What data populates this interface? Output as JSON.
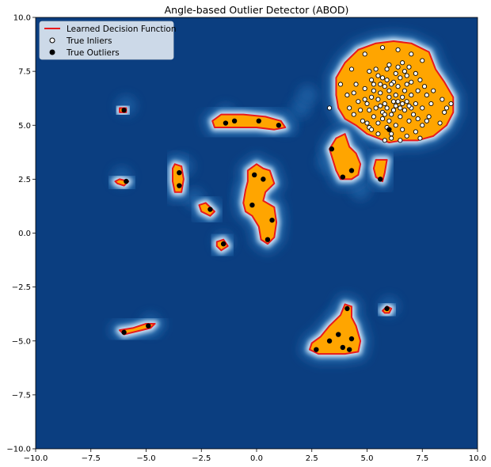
{
  "chart_data": {
    "type": "scatter",
    "title": "Angle-based Outlier Detector (ABOD)",
    "xlabel": "",
    "ylabel": "",
    "xlim": [
      -10,
      10
    ],
    "ylim": [
      -10,
      10
    ],
    "xticks": [
      -10.0,
      -7.5,
      -5.0,
      -2.5,
      0.0,
      2.5,
      5.0,
      7.5,
      10.0
    ],
    "yticks": [
      -10.0,
      -7.5,
      -5.0,
      -2.5,
      0.0,
      2.5,
      5.0,
      7.5,
      10.0
    ],
    "xtick_labels": [
      "−10.0",
      "−7.5",
      "−5.0",
      "−2.5",
      "0.0",
      "2.5",
      "5.0",
      "7.5",
      "10.0"
    ],
    "ytick_labels": [
      "−10.0",
      "−7.5",
      "−5.0",
      "−2.5",
      "0.0",
      "2.5",
      "5.0",
      "7.5",
      "10.0"
    ],
    "grid": false,
    "legend_position": "top-left",
    "legend": [
      {
        "label": "Learned Decision Function",
        "kind": "line",
        "color": "#e8191c"
      },
      {
        "label": "True Inliers",
        "kind": "marker",
        "color": "#ffffff"
      },
      {
        "label": "True Outliers",
        "kind": "marker",
        "color": "#000000"
      }
    ],
    "colors": {
      "background": "#0b3e80",
      "inlier_region": "#ffa500",
      "decision_line": "#e8191c",
      "halo_dark": "#1f5ea3",
      "halo_light": "#e7f0f9"
    },
    "inlier_region_polygons": [
      [
        [
          3.6,
          7.2
        ],
        [
          4.0,
          7.9
        ],
        [
          4.6,
          8.5
        ],
        [
          5.4,
          8.8
        ],
        [
          6.2,
          8.9
        ],
        [
          7.0,
          8.8
        ],
        [
          7.8,
          8.4
        ],
        [
          8.1,
          7.6
        ],
        [
          8.5,
          7.0
        ],
        [
          8.9,
          6.3
        ],
        [
          8.9,
          5.6
        ],
        [
          8.6,
          5.0
        ],
        [
          8.0,
          4.5
        ],
        [
          7.3,
          4.3
        ],
        [
          6.6,
          4.3
        ],
        [
          6.0,
          4.2
        ],
        [
          5.5,
          4.4
        ],
        [
          5.0,
          4.6
        ],
        [
          4.5,
          5.0
        ],
        [
          4.0,
          5.3
        ],
        [
          3.7,
          5.8
        ],
        [
          3.6,
          6.4
        ]
      ],
      [
        [
          3.3,
          3.9
        ],
        [
          3.6,
          4.4
        ],
        [
          4.0,
          4.6
        ],
        [
          4.2,
          4.0
        ],
        [
          4.5,
          3.7
        ],
        [
          4.7,
          3.2
        ],
        [
          4.6,
          2.7
        ],
        [
          4.3,
          2.5
        ],
        [
          3.8,
          2.5
        ],
        [
          3.6,
          2.9
        ]
      ],
      [
        [
          5.4,
          3.4
        ],
        [
          5.9,
          3.4
        ],
        [
          5.8,
          2.8
        ],
        [
          5.7,
          2.4
        ],
        [
          5.4,
          2.6
        ],
        [
          5.3,
          3.0
        ]
      ],
      [
        [
          -2.0,
          5.2
        ],
        [
          -1.6,
          5.5
        ],
        [
          -0.6,
          5.5
        ],
        [
          0.4,
          5.4
        ],
        [
          1.1,
          5.2
        ],
        [
          1.3,
          4.9
        ],
        [
          0.8,
          4.8
        ],
        [
          0.0,
          4.9
        ],
        [
          -1.0,
          4.9
        ],
        [
          -1.9,
          4.9
        ]
      ],
      [
        [
          -3.8,
          3.0
        ],
        [
          -3.7,
          3.2
        ],
        [
          -3.4,
          3.1
        ],
        [
          -3.3,
          2.5
        ],
        [
          -3.4,
          1.9
        ],
        [
          -3.7,
          1.9
        ],
        [
          -3.8,
          2.4
        ]
      ],
      [
        [
          -6.4,
          2.4
        ],
        [
          -6.2,
          2.5
        ],
        [
          -5.8,
          2.4
        ],
        [
          -6.0,
          2.2
        ],
        [
          -6.3,
          2.3
        ]
      ],
      [
        [
          -6.2,
          5.8
        ],
        [
          -5.9,
          5.8
        ],
        [
          -5.9,
          5.6
        ],
        [
          -6.2,
          5.6
        ]
      ],
      [
        [
          -2.6,
          1.3
        ],
        [
          -2.3,
          1.4
        ],
        [
          -1.9,
          1.0
        ],
        [
          -2.1,
          0.8
        ],
        [
          -2.5,
          1.0
        ]
      ],
      [
        [
          -1.8,
          -0.4
        ],
        [
          -1.5,
          -0.3
        ],
        [
          -1.3,
          -0.6
        ],
        [
          -1.6,
          -0.8
        ],
        [
          -1.8,
          -0.6
        ]
      ],
      [
        [
          -0.4,
          2.9
        ],
        [
          0.0,
          3.2
        ],
        [
          0.3,
          3.0
        ],
        [
          0.6,
          2.9
        ],
        [
          0.8,
          2.3
        ],
        [
          0.4,
          1.9
        ],
        [
          0.3,
          1.5
        ],
        [
          0.8,
          1.2
        ],
        [
          0.9,
          0.5
        ],
        [
          0.8,
          -0.2
        ],
        [
          0.5,
          -0.5
        ],
        [
          0.2,
          -0.3
        ],
        [
          0.1,
          0.3
        ],
        [
          -0.2,
          0.8
        ],
        [
          -0.5,
          1.0
        ],
        [
          -0.6,
          1.4
        ],
        [
          -0.5,
          2.0
        ],
        [
          -0.4,
          2.4
        ]
      ],
      [
        [
          -6.2,
          -4.5
        ],
        [
          -6.0,
          -4.7
        ],
        [
          -5.2,
          -4.5
        ],
        [
          -4.8,
          -4.4
        ],
        [
          -4.6,
          -4.2
        ],
        [
          -5.0,
          -4.2
        ],
        [
          -5.6,
          -4.4
        ]
      ],
      [
        [
          2.4,
          -5.4
        ],
        [
          2.5,
          -5.1
        ],
        [
          2.9,
          -4.8
        ],
        [
          3.3,
          -4.3
        ],
        [
          3.8,
          -3.8
        ],
        [
          4.0,
          -3.3
        ],
        [
          4.3,
          -3.4
        ],
        [
          4.3,
          -3.9
        ],
        [
          4.5,
          -4.3
        ],
        [
          4.7,
          -5.0
        ],
        [
          4.6,
          -5.5
        ],
        [
          4.0,
          -5.6
        ],
        [
          3.5,
          -5.6
        ],
        [
          2.8,
          -5.6
        ]
      ],
      [
        [
          5.7,
          -3.6
        ],
        [
          5.9,
          -3.4
        ],
        [
          6.1,
          -3.5
        ],
        [
          6.0,
          -3.7
        ],
        [
          5.8,
          -3.7
        ]
      ]
    ],
    "halo_points": [
      [
        -4.8,
        -4.2
      ],
      [
        -3.3,
        3.1
      ],
      [
        -1.4,
        5.5
      ],
      [
        1.3,
        5.1
      ],
      [
        -0.5,
        1.9
      ],
      [
        0.7,
        0.9
      ],
      [
        2.0,
        5.8
      ],
      [
        2.3,
        6.4
      ],
      [
        3.2,
        3.3
      ],
      [
        4.7,
        2.0
      ],
      [
        -2.8,
        1.6
      ],
      [
        -6.1,
        2.6
      ],
      [
        -5.9,
        5.9
      ],
      [
        -1.5,
        -0.4
      ],
      [
        3.7,
        -3.9
      ],
      [
        6.0,
        -3.4
      ]
    ],
    "inliers": [
      [
        4.9,
        8.3
      ],
      [
        5.1,
        7.5
      ],
      [
        5.7,
        8.6
      ],
      [
        6.4,
        8.5
      ],
      [
        7.0,
        8.3
      ],
      [
        7.5,
        8.0
      ],
      [
        4.3,
        7.6
      ],
      [
        4.5,
        6.9
      ],
      [
        4.9,
        6.7
      ],
      [
        5.2,
        7.1
      ],
      [
        5.4,
        7.6
      ],
      [
        5.7,
        7.2
      ],
      [
        6.0,
        7.8
      ],
      [
        6.3,
        7.4
      ],
      [
        6.6,
        7.9
      ],
      [
        6.9,
        7.7
      ],
      [
        7.2,
        7.4
      ],
      [
        7.4,
        7.1
      ],
      [
        7.6,
        6.8
      ],
      [
        7.7,
        6.4
      ],
      [
        7.9,
        6.0
      ],
      [
        7.8,
        5.4
      ],
      [
        7.5,
        5.0
      ],
      [
        7.2,
        4.7
      ],
      [
        6.8,
        4.5
      ],
      [
        6.5,
        4.3
      ],
      [
        6.1,
        4.4
      ],
      [
        5.8,
        4.3
      ],
      [
        5.5,
        4.6
      ],
      [
        5.1,
        4.9
      ],
      [
        4.8,
        5.2
      ],
      [
        4.4,
        5.5
      ],
      [
        4.2,
        5.8
      ],
      [
        4.1,
        6.4
      ],
      [
        3.8,
        6.9
      ],
      [
        3.3,
        5.8
      ],
      [
        8.4,
        6.2
      ],
      [
        8.5,
        5.6
      ],
      [
        8.3,
        5.1
      ],
      [
        8.8,
        6.0
      ],
      [
        8.6,
        5.8
      ],
      [
        7.4,
        4.4
      ],
      [
        5.0,
        6.0
      ],
      [
        5.2,
        6.3
      ],
      [
        5.4,
        5.8
      ],
      [
        5.6,
        6.5
      ],
      [
        5.8,
        6.0
      ],
      [
        6.0,
        6.6
      ],
      [
        6.2,
        6.1
      ],
      [
        6.4,
        6.8
      ],
      [
        6.6,
        6.3
      ],
      [
        6.8,
        6.9
      ],
      [
        7.0,
        6.4
      ],
      [
        7.2,
        6.0
      ],
      [
        7.1,
        5.5
      ],
      [
        6.9,
        5.2
      ],
      [
        6.7,
        5.7
      ],
      [
        6.5,
        5.4
      ],
      [
        6.3,
        5.9
      ],
      [
        6.1,
        5.5
      ],
      [
        5.9,
        5.8
      ],
      [
        5.7,
        5.3
      ],
      [
        5.5,
        5.1
      ],
      [
        5.3,
        5.4
      ],
      [
        5.1,
        5.7
      ],
      [
        4.9,
        6.2
      ],
      [
        5.6,
        6.9
      ],
      [
        5.9,
        7.1
      ],
      [
        6.2,
        7.0
      ],
      [
        6.5,
        7.2
      ],
      [
        6.7,
        7.5
      ],
      [
        6.0,
        6.3
      ],
      [
        6.2,
        5.7
      ],
      [
        5.8,
        6.8
      ],
      [
        6.4,
        6.1
      ],
      [
        6.6,
        6.0
      ],
      [
        5.5,
        6.2
      ],
      [
        5.3,
        6.6
      ],
      [
        5.7,
        5.6
      ],
      [
        6.0,
        5.2
      ],
      [
        6.3,
        5.0
      ],
      [
        6.8,
        6.1
      ],
      [
        7.0,
        5.8
      ],
      [
        4.6,
        6.1
      ],
      [
        4.7,
        5.7
      ],
      [
        5.0,
        5.1
      ],
      [
        5.2,
        4.8
      ],
      [
        5.9,
        4.9
      ],
      [
        6.1,
        4.6
      ],
      [
        6.6,
        4.8
      ],
      [
        7.3,
        5.3
      ],
      [
        7.5,
        5.8
      ],
      [
        7.3,
        6.6
      ],
      [
        7.0,
        7.0
      ],
      [
        6.8,
        7.3
      ],
      [
        6.4,
        7.7
      ],
      [
        5.9,
        7.6
      ],
      [
        5.5,
        7.3
      ],
      [
        5.3,
        6.9
      ],
      [
        6.7,
        6.6
      ],
      [
        6.9,
        5.9
      ],
      [
        7.7,
        5.2
      ],
      [
        8.0,
        6.6
      ],
      [
        4.4,
        6.5
      ],
      [
        6.1,
        6.9
      ],
      [
        5.6,
        5.9
      ],
      [
        6.3,
        6.4
      ],
      [
        6.5,
        5.8
      ],
      [
        5.8,
        5.5
      ]
    ],
    "outliers": [
      [
        -6.0,
        5.7
      ],
      [
        -5.9,
        2.4
      ],
      [
        -3.5,
        2.8
      ],
      [
        -3.5,
        2.2
      ],
      [
        -2.1,
        1.1
      ],
      [
        -1.5,
        -0.5
      ],
      [
        -1.4,
        5.1
      ],
      [
        -1.0,
        5.2
      ],
      [
        0.1,
        5.2
      ],
      [
        1.0,
        5.0
      ],
      [
        -0.1,
        2.7
      ],
      [
        0.3,
        2.5
      ],
      [
        -0.2,
        1.3
      ],
      [
        0.7,
        0.6
      ],
      [
        0.5,
        -0.3
      ],
      [
        3.4,
        3.9
      ],
      [
        3.9,
        2.6
      ],
      [
        4.3,
        2.9
      ],
      [
        5.6,
        2.5
      ],
      [
        6.0,
        4.8
      ],
      [
        -6.0,
        -4.6
      ],
      [
        -4.9,
        -4.3
      ],
      [
        4.1,
        -3.5
      ],
      [
        2.7,
        -5.4
      ],
      [
        3.3,
        -5.0
      ],
      [
        3.7,
        -4.7
      ],
      [
        3.9,
        -5.3
      ],
      [
        4.3,
        -4.9
      ],
      [
        4.2,
        -5.4
      ],
      [
        5.9,
        -3.5
      ]
    ]
  }
}
